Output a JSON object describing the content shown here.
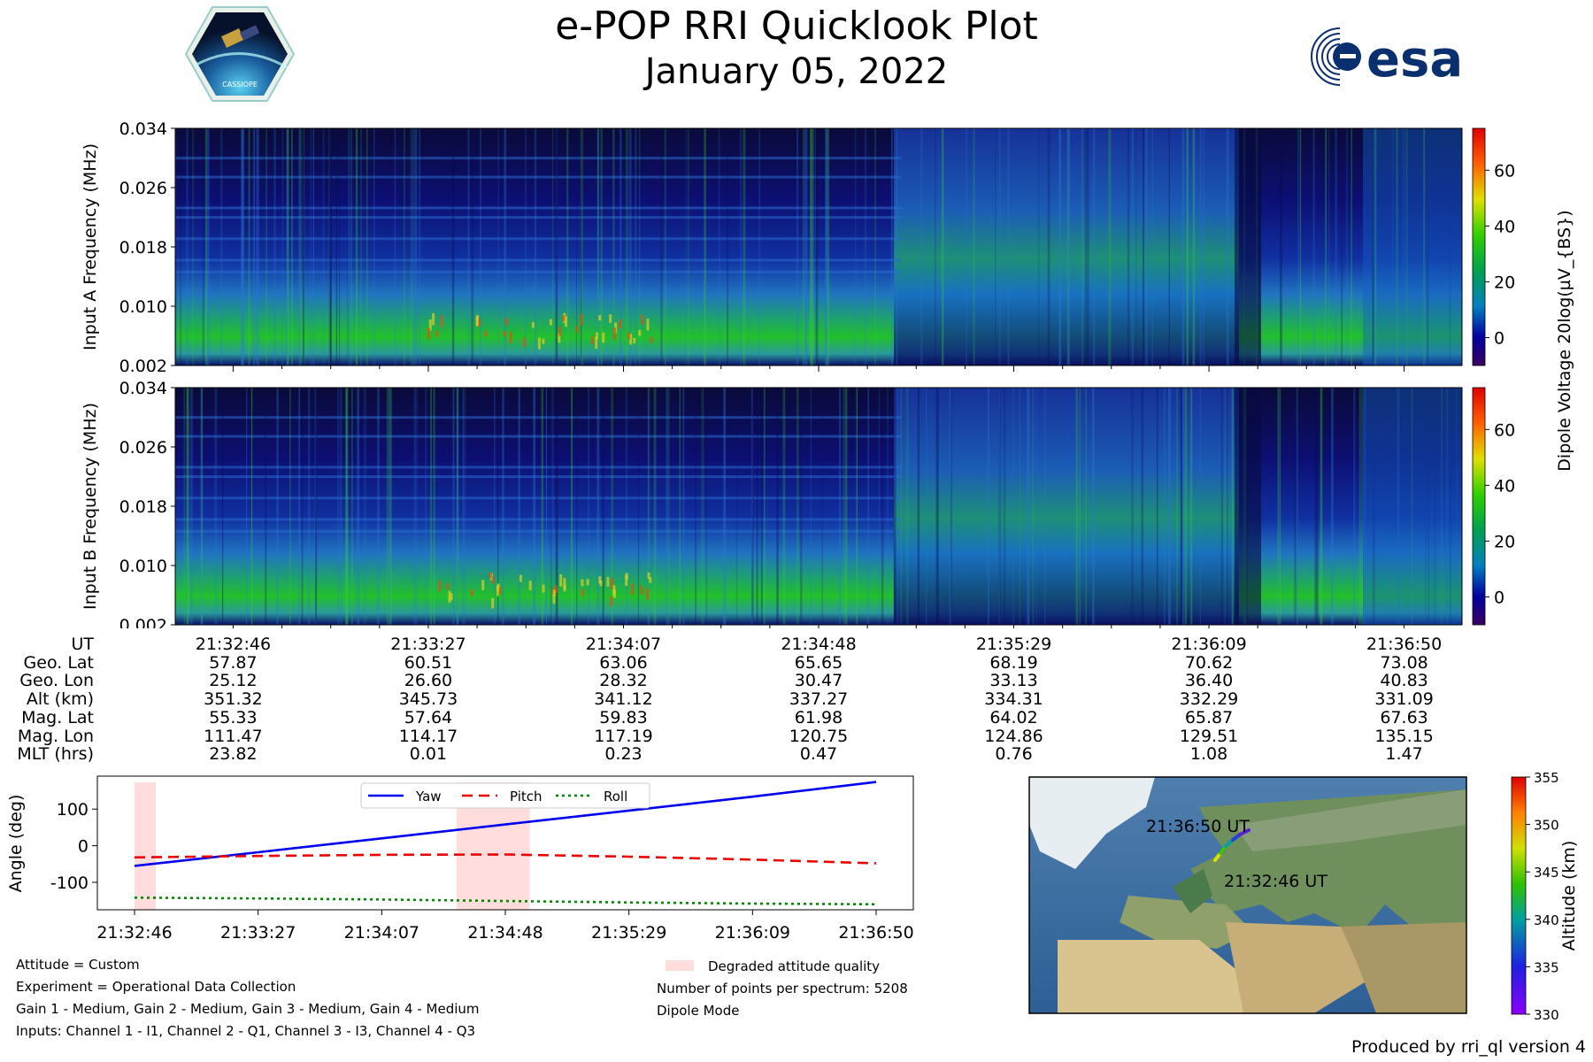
{
  "header": {
    "title": "e-POP RRI Quicklook Plot",
    "date": "January 05, 2022",
    "mission_logo_text": "CASSIOPE",
    "agency_logo_text": "esa"
  },
  "chart_data": [
    {
      "type": "heatmap",
      "name": "Input A spectrogram",
      "ylabel": "Input A Frequency (MHz)",
      "ylim": [
        0.002,
        0.034
      ],
      "yticks": [
        "0.002",
        "0.010",
        "0.018",
        "0.026",
        "0.034"
      ],
      "colorbar": {
        "label": "Dipole Voltage 20log(µV_{BS})",
        "ticks": [
          "0",
          "20",
          "40",
          "60"
        ],
        "range": [
          -10,
          75
        ]
      }
    },
    {
      "type": "heatmap",
      "name": "Input B spectrogram",
      "ylabel": "Input B Frequency (MHz)",
      "ylim": [
        0.002,
        0.034
      ],
      "yticks": [
        "0.002",
        "0.010",
        "0.018",
        "0.026",
        "0.034"
      ],
      "colorbar": {
        "label": "Dipole Voltage 20log(µV_{BS})",
        "ticks": [
          "0",
          "20",
          "40",
          "60"
        ],
        "range": [
          -10,
          75
        ]
      }
    },
    {
      "type": "line",
      "name": "Attitude",
      "ylabel": "Angle (deg)",
      "ylim": [
        -175,
        190
      ],
      "yticks": [
        "-100",
        "0",
        "100"
      ],
      "x": [
        "21:32:46",
        "21:33:27",
        "21:34:07",
        "21:34:48",
        "21:35:29",
        "21:36:09",
        "21:36:50"
      ],
      "series": [
        {
          "name": "Yaw",
          "color": "#0000ee",
          "style": "solid",
          "values": [
            -55,
            -18,
            20,
            58,
            96,
            134,
            174
          ]
        },
        {
          "name": "Pitch",
          "color": "#ee0000",
          "style": "dashed",
          "values": [
            -32,
            -28,
            -25,
            -24,
            -30,
            -38,
            -48
          ]
        },
        {
          "name": "Roll",
          "color": "#008800",
          "style": "dotted",
          "values": [
            -142,
            -144,
            -147,
            -151,
            -155,
            -158,
            -160
          ]
        }
      ],
      "degraded_intervals": [
        [
          "21:32:46",
          "21:32:53"
        ],
        [
          "21:34:32",
          "21:34:56"
        ]
      ],
      "degraded_label": "Degraded attitude quality"
    },
    {
      "type": "scatter",
      "name": "Ground track",
      "colorbar": {
        "label": "Altitude (km)",
        "ticks": [
          "330",
          "335",
          "340",
          "345",
          "350",
          "355"
        ],
        "range": [
          330,
          355
        ]
      },
      "annotations": [
        "21:36:50 UT",
        "21:32:46 UT"
      ]
    }
  ],
  "ephemeris": {
    "times": [
      "21:32:46",
      "21:33:27",
      "21:34:07",
      "21:34:48",
      "21:35:29",
      "21:36:09",
      "21:36:50"
    ],
    "rows": [
      {
        "label": "UT",
        "values": [
          "21:32:46",
          "21:33:27",
          "21:34:07",
          "21:34:48",
          "21:35:29",
          "21:36:09",
          "21:36:50"
        ]
      },
      {
        "label": "Geo. Lat",
        "values": [
          "57.87",
          "60.51",
          "63.06",
          "65.65",
          "68.19",
          "70.62",
          "73.08"
        ]
      },
      {
        "label": "Geo. Lon",
        "values": [
          "25.12",
          "26.60",
          "28.32",
          "30.47",
          "33.13",
          "36.40",
          "40.83"
        ]
      },
      {
        "label": "Alt (km)",
        "values": [
          "351.32",
          "345.73",
          "341.12",
          "337.27",
          "334.31",
          "332.29",
          "331.09"
        ]
      },
      {
        "label": "Mag. Lat",
        "values": [
          "55.33",
          "57.64",
          "59.83",
          "61.98",
          "64.02",
          "65.87",
          "67.63"
        ]
      },
      {
        "label": "Mag. Lon",
        "values": [
          "111.47",
          "114.17",
          "117.19",
          "120.75",
          "124.86",
          "129.51",
          "135.15"
        ]
      },
      {
        "label": "MLT (hrs)",
        "values": [
          "23.82",
          "0.01",
          "0.23",
          "0.47",
          "0.76",
          "1.08",
          "1.47"
        ]
      }
    ]
  },
  "info": {
    "attitude": "Attitude = Custom",
    "experiment": "Experiment = Operational Data Collection",
    "gains": "Gain 1 - Medium, Gain 2 - Medium, Gain 3 - Medium, Gain 4 - Medium",
    "inputs": "Inputs: Channel 1 - I1, Channel 2 - Q1, Channel 3 - I3, Channel 4 - Q3",
    "points": "Number of points per spectrum: 5208",
    "mode": "Dipole Mode"
  },
  "footer": {
    "produced_by": "Produced by rri_ql version 4"
  }
}
